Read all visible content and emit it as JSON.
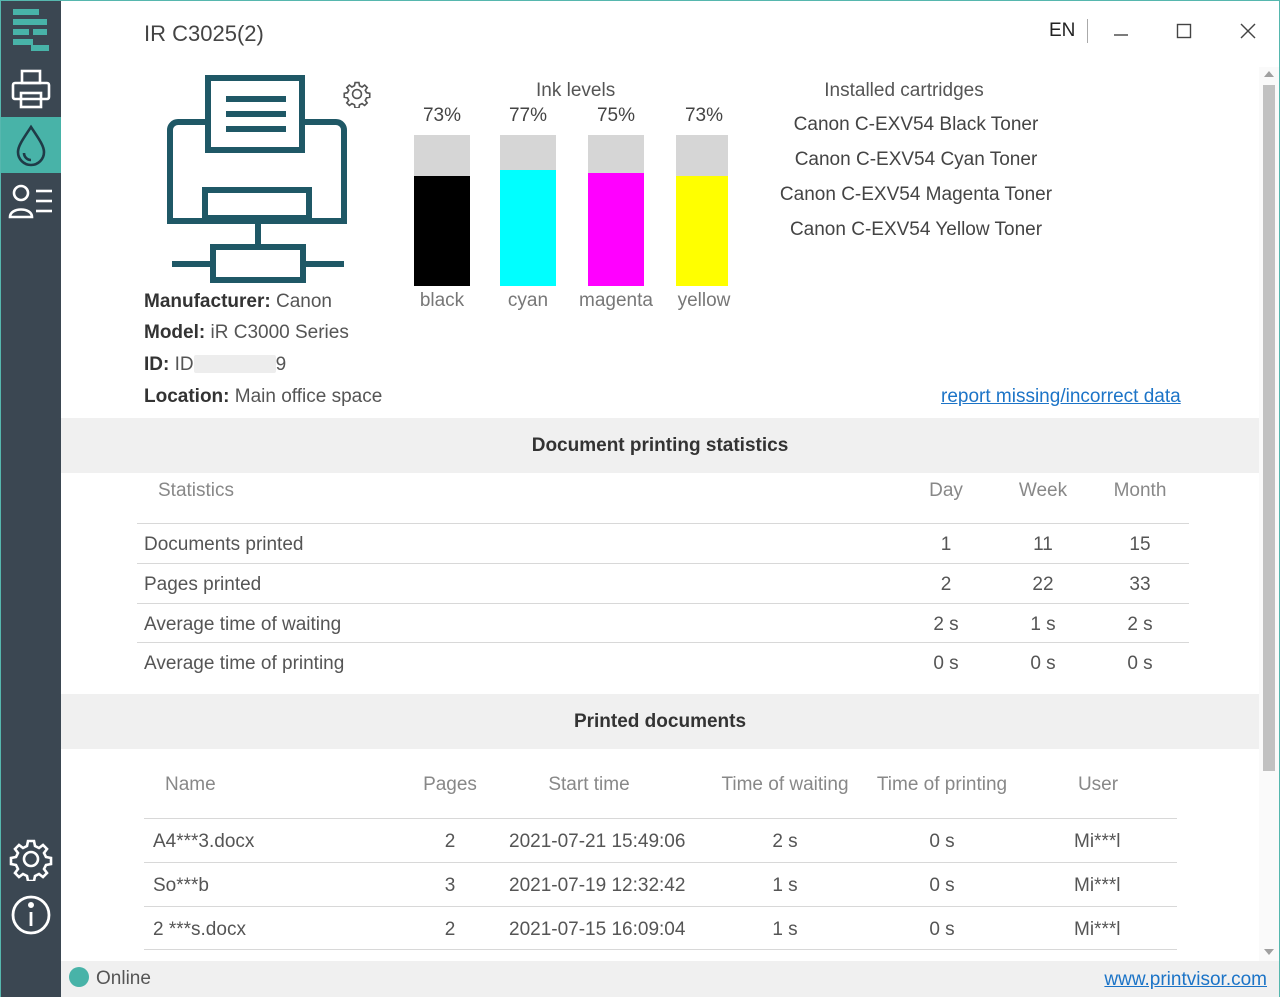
{
  "window": {
    "title": "IR C3025(2)",
    "language": "EN"
  },
  "sidebar": {
    "items": [
      {
        "name": "logo",
        "icon": "app-logo-icon"
      },
      {
        "name": "printers",
        "icon": "printer-icon"
      },
      {
        "name": "ink",
        "icon": "ink-drop-icon",
        "active": true
      },
      {
        "name": "users",
        "icon": "user-list-icon"
      },
      {
        "name": "settings",
        "icon": "gear-icon"
      },
      {
        "name": "info",
        "icon": "info-icon"
      }
    ]
  },
  "printer": {
    "manufacturer_label": "Manufacturer:",
    "manufacturer": "Canon",
    "model_label": "Model:",
    "model": "iR C3000 Series",
    "id_label": "ID:",
    "id_prefix": "ID",
    "id_suffix": "9",
    "location_label": "Location:",
    "location": "Main office space"
  },
  "ink": {
    "title": "Ink levels",
    "levels": [
      {
        "name": "black",
        "percent_label": "73%",
        "fill_fraction": 0.73,
        "color": "#000000"
      },
      {
        "name": "cyan",
        "percent_label": "77%",
        "fill_fraction": 0.77,
        "color": "#00ffff"
      },
      {
        "name": "magenta",
        "percent_label": "75%",
        "fill_fraction": 0.75,
        "color": "#ff00ff"
      },
      {
        "name": "yellow",
        "percent_label": "73%",
        "fill_fraction": 0.73,
        "color": "#ffff00"
      }
    ]
  },
  "cartridges": {
    "title": "Installed cartridges",
    "items": [
      "Canon C-EXV54 Black Toner",
      "Canon C-EXV54 Cyan Toner",
      "Canon C-EXV54 Magenta Toner",
      "Canon C-EXV54 Yellow Toner"
    ]
  },
  "report_link": "report missing/incorrect data",
  "stats": {
    "title": "Document printing statistics",
    "headers": {
      "statistics": "Statistics",
      "day": "Day",
      "week": "Week",
      "month": "Month"
    },
    "rows": [
      {
        "label": "Documents printed",
        "day": "1",
        "week": "11",
        "month": "15"
      },
      {
        "label": "Pages printed",
        "day": "2",
        "week": "22",
        "month": "33"
      },
      {
        "label": "Average time of waiting",
        "day": "2 s",
        "week": "1 s",
        "month": "2 s"
      },
      {
        "label": "Average time of printing",
        "day": "0 s",
        "week": "0 s",
        "month": "0 s"
      }
    ]
  },
  "docs": {
    "title": "Printed documents",
    "headers": {
      "name": "Name",
      "pages": "Pages",
      "start": "Start time",
      "waiting": "Time of waiting",
      "printing": "Time of printing",
      "user": "User"
    },
    "rows": [
      {
        "name": "A4***3.docx",
        "pages": "2",
        "start": "2021-07-21 15:49:06",
        "waiting": "2 s",
        "printing": "0 s",
        "user": "Mi***l"
      },
      {
        "name": "So***b",
        "pages": "3",
        "start": "2021-07-19 12:32:42",
        "waiting": "1 s",
        "printing": "0 s",
        "user": "Mi***l"
      },
      {
        "name": "2 ***s.docx",
        "pages": "2",
        "start": "2021-07-15 16:09:04",
        "waiting": "1 s",
        "printing": "0 s",
        "user": "Mi***l"
      }
    ]
  },
  "status": {
    "text": "Online",
    "color": "#48b3a8",
    "link": "www.printvisor.com"
  },
  "colors": {
    "accent": "#48b3a8",
    "sidebar": "#3b4752",
    "printer_illustration": "#1f5866",
    "link": "#1c74c7"
  }
}
